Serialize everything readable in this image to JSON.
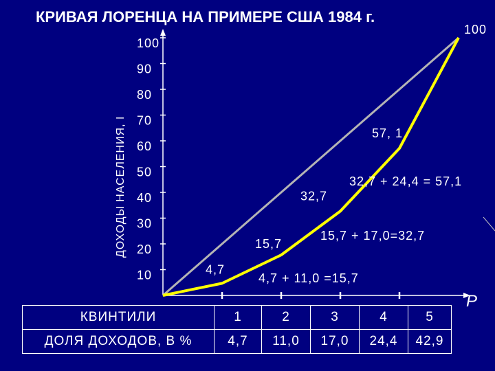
{
  "chart_data": {
    "type": "line",
    "title": "КРИВАЯ ЛОРЕНЦА НА ПРИМЕРЕ США 1984 г.",
    "ylabel": "ДОХОДЫ НАСЕЛЕНИЯ, I",
    "xlabel": "P",
    "ylim": [
      0,
      100
    ],
    "xlim": [
      0,
      5
    ],
    "y_ticks": [
      "10",
      "20",
      "30",
      "40",
      "50",
      "60",
      "70",
      "80",
      "90",
      "100"
    ],
    "series": [
      {
        "points": [
          [
            0,
            0
          ],
          [
            5,
            100
          ]
        ],
        "color": "#b4b4b4"
      },
      {
        "points": [
          [
            0,
            0
          ],
          [
            1,
            4.7
          ],
          [
            2,
            15.7
          ],
          [
            3,
            32.7
          ],
          [
            4,
            57.1
          ],
          [
            5,
            100
          ]
        ],
        "color": "#ffff00"
      }
    ],
    "point_labels": [
      "4,7",
      "15,7",
      "32,7",
      "57, 1",
      "100"
    ],
    "annotations": [
      "4,7 + 11,0 =15,7",
      "15,7 + 17,0=32,7",
      "32,7 + 24,4 = 57,1"
    ]
  },
  "table": {
    "row1_label": "КВИНТИЛИ",
    "row2_label": "ДОЛЯ ДОХОДОВ, В %",
    "quintiles": [
      "1",
      "2",
      "3",
      "4",
      "5"
    ],
    "shares": [
      "4,7",
      "11,0",
      "17,0",
      "24,4",
      "42,9"
    ]
  }
}
